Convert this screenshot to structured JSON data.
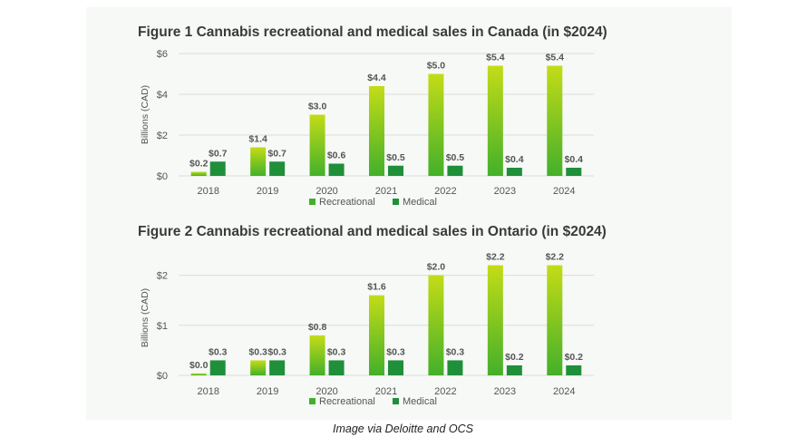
{
  "colors": {
    "recreational_top": "#c4dc17",
    "recreational_bottom": "#43b02a",
    "medical": "#1f8f3a",
    "panel": "#f7f9f6",
    "grid": "#dcdcdc",
    "text": "#555555"
  },
  "caption": "Image via Deloitte and OCS",
  "chart_data": [
    {
      "type": "bar",
      "title": "Figure 1 Cannabis recreational and medical sales in Canada (in $2024)",
      "ylabel": "Billions (CAD)",
      "xlabel": "",
      "categories": [
        "2018",
        "2019",
        "2020",
        "2021",
        "2022",
        "2023",
        "2024"
      ],
      "series": [
        {
          "name": "Recreational",
          "values": [
            0.2,
            1.4,
            3.0,
            4.4,
            5.0,
            5.4,
            5.4
          ],
          "labels": [
            "$0.2",
            "$1.4",
            "$3.0",
            "$4.4",
            "$5.0",
            "$5.4",
            "$5.4"
          ]
        },
        {
          "name": "Medical",
          "values": [
            0.7,
            0.7,
            0.6,
            0.5,
            0.5,
            0.4,
            0.4
          ],
          "labels": [
            "$0.7",
            "$0.7",
            "$0.6",
            "$0.5",
            "$0.5",
            "$0.4",
            "$0.4"
          ]
        }
      ],
      "yticks": [
        0,
        2,
        4,
        6
      ],
      "ytick_labels": [
        "$0",
        "$2",
        "$4",
        "$6"
      ],
      "ylim": [
        0,
        6
      ],
      "grid": true,
      "legend": "bottom"
    },
    {
      "type": "bar",
      "title": "Figure 2 Cannabis recreational and medical sales in Ontario (in $2024)",
      "ylabel": "Billions (CAD)",
      "xlabel": "",
      "categories": [
        "2018",
        "2019",
        "2020",
        "2021",
        "2022",
        "2023",
        "2024"
      ],
      "series": [
        {
          "name": "Recreational",
          "values": [
            0.04,
            0.3,
            0.8,
            1.6,
            2.0,
            2.2,
            2.2
          ],
          "labels": [
            "$0.0",
            "$0.3",
            "$0.8",
            "$1.6",
            "$2.0",
            "$2.2",
            "$2.2"
          ]
        },
        {
          "name": "Medical",
          "values": [
            0.3,
            0.3,
            0.3,
            0.3,
            0.3,
            0.2,
            0.2
          ],
          "labels": [
            "$0.3",
            "$0.3",
            "$0.3",
            "$0.3",
            "$0.3",
            "$0.2",
            "$0.2"
          ]
        }
      ],
      "yticks": [
        0,
        1,
        2
      ],
      "ytick_labels": [
        "$0",
        "$1",
        "$2"
      ],
      "ylim": [
        0,
        2.3
      ],
      "grid": true,
      "legend": "bottom"
    }
  ]
}
